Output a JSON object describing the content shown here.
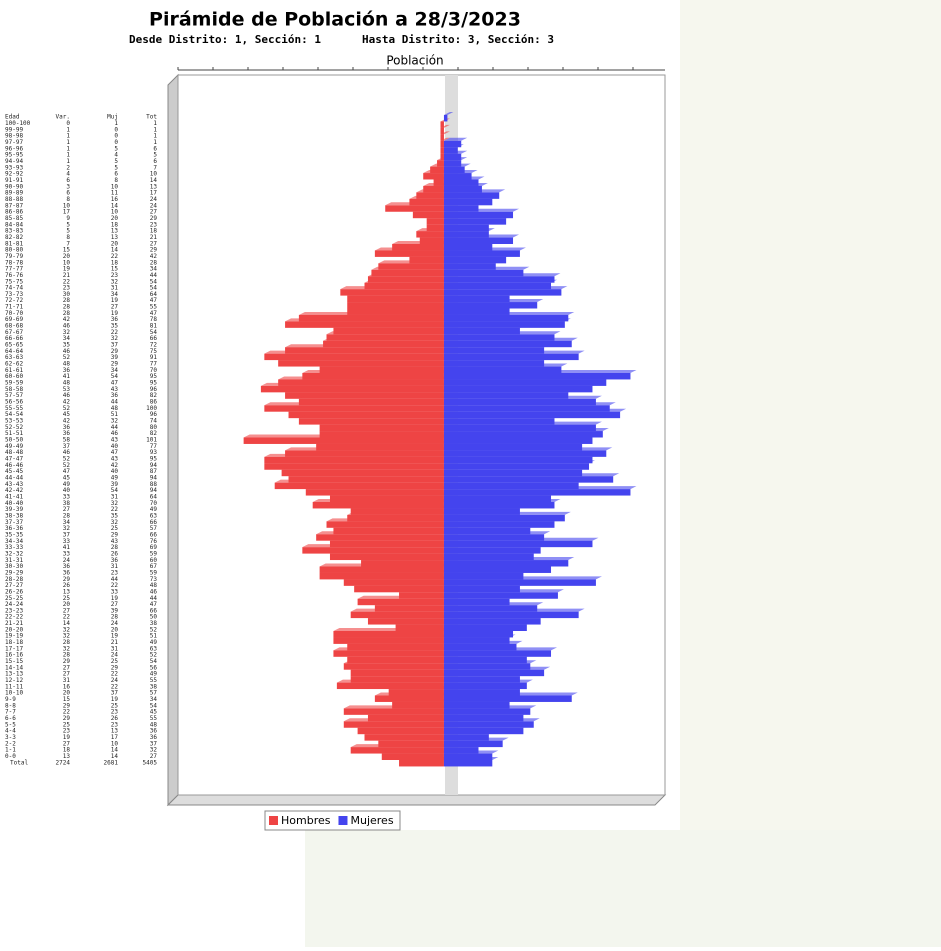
{
  "chart_data": {
    "type": "pyramid",
    "title": "Pirámide de Población a 28/3/2023",
    "subtitle_from": "Desde Distrito: 1, Sección: 1",
    "subtitle_to": "Hasta Distrito: 3, Sección: 3",
    "x_label": "Población",
    "table_headers": [
      "Edad",
      "Var.",
      "Muj",
      "Tot"
    ],
    "categories": [
      "100-100",
      "99-99",
      "98-98",
      "97-97",
      "96-96",
      "95-95",
      "94-94",
      "93-93",
      "92-92",
      "91-91",
      "90-90",
      "89-89",
      "88-88",
      "87-87",
      "86-86",
      "85-85",
      "84-84",
      "83-83",
      "82-82",
      "81-81",
      "80-80",
      "79-79",
      "78-78",
      "77-77",
      "76-76",
      "75-75",
      "74-74",
      "73-73",
      "72-72",
      "71-71",
      "70-70",
      "69-69",
      "68-68",
      "67-67",
      "66-66",
      "65-65",
      "64-64",
      "63-63",
      "62-62",
      "61-61",
      "60-60",
      "59-59",
      "58-58",
      "57-57",
      "56-56",
      "55-55",
      "54-54",
      "53-53",
      "52-52",
      "51-51",
      "50-50",
      "49-49",
      "48-48",
      "47-47",
      "46-46",
      "45-45",
      "44-44",
      "43-43",
      "42-42",
      "41-41",
      "40-40",
      "39-39",
      "38-38",
      "37-37",
      "36-36",
      "35-35",
      "34-34",
      "33-33",
      "32-32",
      "31-31",
      "30-30",
      "29-29",
      "28-28",
      "27-27",
      "26-26",
      "25-25",
      "24-24",
      "23-23",
      "22-22",
      "21-21",
      "20-20",
      "19-19",
      "18-18",
      "17-17",
      "16-16",
      "15-15",
      "14-14",
      "13-13",
      "12-12",
      "11-11",
      "10-10",
      "9-9",
      "8-8",
      "7-7",
      "6-6",
      "5-5",
      "4-4",
      "3-3",
      "2-2",
      "1-1",
      "0-0"
    ],
    "series": [
      {
        "name": "Hombres",
        "color": "#ee4444",
        "values": [
          0,
          1,
          1,
          1,
          1,
          1,
          1,
          2,
          4,
          6,
          3,
          6,
          8,
          10,
          17,
          9,
          5,
          5,
          8,
          7,
          15,
          20,
          10,
          19,
          21,
          22,
          23,
          30,
          28,
          28,
          28,
          42,
          46,
          32,
          34,
          35,
          46,
          52,
          48,
          36,
          41,
          48,
          53,
          46,
          42,
          52,
          45,
          42,
          36,
          36,
          58,
          37,
          46,
          52,
          52,
          47,
          45,
          49,
          40,
          33,
          38,
          27,
          28,
          34,
          32,
          37,
          33,
          41,
          33,
          24,
          36,
          36,
          29,
          26,
          13,
          25,
          20,
          27,
          22,
          14,
          32,
          32,
          28,
          32,
          28,
          29,
          27,
          27,
          31,
          16,
          20,
          15,
          29,
          22,
          29,
          25,
          23,
          19,
          27,
          18,
          13
        ]
      },
      {
        "name": "Mujeres",
        "color": "#4444ee",
        "values": [
          1,
          0,
          0,
          0,
          5,
          4,
          5,
          5,
          6,
          8,
          10,
          11,
          16,
          14,
          10,
          20,
          18,
          13,
          13,
          20,
          14,
          22,
          18,
          15,
          23,
          32,
          31,
          34,
          19,
          27,
          19,
          36,
          35,
          22,
          32,
          37,
          29,
          39,
          29,
          34,
          54,
          47,
          43,
          36,
          44,
          48,
          51,
          32,
          44,
          46,
          43,
          40,
          47,
          43,
          42,
          40,
          49,
          39,
          54,
          31,
          32,
          22,
          35,
          32,
          25,
          29,
          43,
          28,
          26,
          36,
          31,
          23,
          44,
          22,
          33,
          19,
          27,
          39,
          28,
          24,
          20,
          19,
          21,
          31,
          24,
          25,
          29,
          22,
          24,
          22,
          37,
          19,
          25,
          23,
          26,
          23,
          13,
          17,
          10,
          14,
          14
        ]
      }
    ],
    "totals": [
      1,
      1,
      1,
      1,
      6,
      5,
      6,
      7,
      10,
      14,
      13,
      17,
      24,
      24,
      27,
      29,
      23,
      18,
      21,
      27,
      29,
      42,
      28,
      34,
      44,
      54,
      54,
      64,
      47,
      55,
      47,
      78,
      81,
      54,
      66,
      72,
      75,
      91,
      77,
      70,
      95,
      95,
      96,
      82,
      86,
      100,
      96,
      74,
      80,
      82,
      101,
      77,
      93,
      95,
      94,
      87,
      94,
      88,
      94,
      64,
      70,
      49,
      63,
      66,
      57,
      66,
      76,
      69,
      59,
      60,
      67,
      59,
      73,
      48,
      46,
      44,
      47,
      66,
      50,
      38,
      52,
      51,
      49,
      63,
      52,
      54,
      56,
      49,
      55,
      38,
      57,
      34,
      54,
      45,
      55,
      48,
      36,
      36,
      37,
      32,
      27
    ],
    "total_row": {
      "label": "Total",
      "values": [
        2724,
        2681,
        5405
      ]
    },
    "xlim": [
      -77,
      64
    ]
  }
}
